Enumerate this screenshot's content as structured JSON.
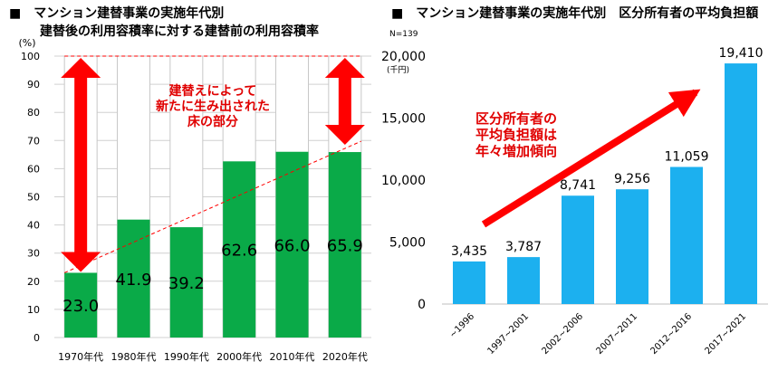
{
  "chart_data": [
    {
      "type": "bar",
      "title": "■　マンション建替事業の実施年代別",
      "subtitle": "建替後の利用容積率に対する建替前の利用容積率",
      "ylabel": "(%)",
      "ylim": [
        0,
        100
      ],
      "yticks": [
        "0",
        "10",
        "20",
        "30",
        "40",
        "50",
        "60",
        "70",
        "80",
        "90",
        "100"
      ],
      "categories": [
        "1970年代",
        "1980年代",
        "1990年代",
        "2000年代",
        "2010年代",
        "2020年代"
      ],
      "values": [
        23.0,
        41.9,
        39.2,
        62.6,
        66.0,
        65.9
      ],
      "value_labels": [
        "23.0",
        "41.9",
        "39.2",
        "62.6",
        "66.0",
        "65.9"
      ],
      "bar_color": "#0aaa48",
      "background_bar_color": "#ffffff",
      "grid": true,
      "annotation": [
        "建替えによって",
        "新たに生み出された",
        "床の部分"
      ],
      "annotation_color": "#e00000"
    },
    {
      "type": "bar",
      "title": "■　マンション建替事業の実施年代別　区分所有者の平均負担額",
      "note": "N=139",
      "ylabel": "(千円)",
      "ylim": [
        0,
        20000
      ],
      "yticks": [
        "0",
        "5,000",
        "10,000",
        "15,000",
        "20,000"
      ],
      "categories": [
        "~1996",
        "1997~2001",
        "2002~2006",
        "2007~2011",
        "2012~2016",
        "2017~2021"
      ],
      "values": [
        3435,
        3787,
        8741,
        9256,
        11059,
        19410
      ],
      "value_labels": [
        "3,435",
        "3,787",
        "8,741",
        "9,256",
        "11,059",
        "19,410"
      ],
      "bar_color": "#1cb0ef",
      "grid": false,
      "annotation": [
        "区分所有者の",
        "平均負担額は",
        "年々増加傾向"
      ],
      "annotation_color": "#e00000"
    }
  ]
}
